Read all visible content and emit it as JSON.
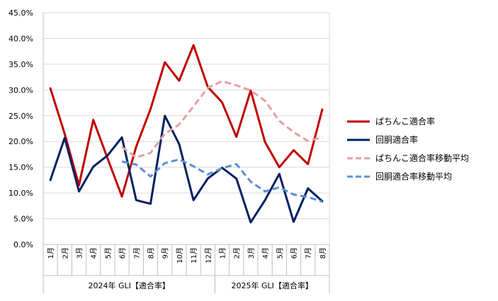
{
  "chart_data": {
    "type": "line",
    "categories": [
      "1月",
      "2月",
      "3月",
      "4月",
      "5月",
      "6月",
      "7月",
      "8月",
      "9月",
      "10月",
      "11月",
      "12月",
      "1月",
      "2月",
      "3月",
      "4月",
      "5月",
      "6月",
      "7月",
      "8月"
    ],
    "groups": [
      {
        "label": "2024年 GLI【適合率】",
        "start": 0,
        "count": 12
      },
      {
        "label": "2025年 GLI【適合率】",
        "start": 12,
        "count": 8
      }
    ],
    "ylim": [
      0,
      45
    ],
    "yticks": [
      "0.0%",
      "5.0%",
      "10.0%",
      "15.0%",
      "20.0%",
      "25.0%",
      "30.0%",
      "35.0%",
      "40.0%",
      "45.0%"
    ],
    "grid": true,
    "legend_position": "right",
    "series": [
      {
        "name": "ぱちんこ適合率",
        "color": "#c00000",
        "dash": false,
        "values": [
          30.3,
          21.5,
          11.5,
          24.2,
          16.7,
          9.3,
          19.0,
          26.3,
          35.4,
          31.8,
          38.7,
          30.6,
          27.6,
          20.9,
          29.9,
          19.9,
          15.0,
          18.3,
          15.6,
          26.2
        ]
      },
      {
        "name": "回胴適合率",
        "color": "#002060",
        "dash": false,
        "values": [
          12.5,
          20.7,
          10.3,
          15.1,
          17.3,
          20.8,
          8.6,
          7.9,
          25.0,
          19.5,
          8.6,
          12.8,
          14.9,
          12.8,
          4.3,
          8.6,
          13.7,
          4.4,
          10.9,
          8.4
        ]
      },
      {
        "name": "ぱちんこ適合率移動平均",
        "color": "#e6a0a0",
        "dash": true,
        "values": [
          null,
          null,
          null,
          null,
          null,
          18.9,
          16.9,
          17.8,
          21.5,
          23.3,
          26.8,
          30.4,
          31.7,
          30.9,
          29.9,
          27.9,
          24.0,
          21.8,
          20.1,
          20.8
        ]
      },
      {
        "name": "回胴適合率移動平均",
        "color": "#5b8fd6",
        "dash": true,
        "values": [
          null,
          null,
          null,
          null,
          null,
          16.1,
          15.5,
          13.2,
          15.8,
          16.5,
          15.2,
          13.6,
          14.8,
          15.6,
          12.2,
          10.3,
          11.1,
          9.7,
          9.2,
          8.3
        ]
      }
    ]
  }
}
